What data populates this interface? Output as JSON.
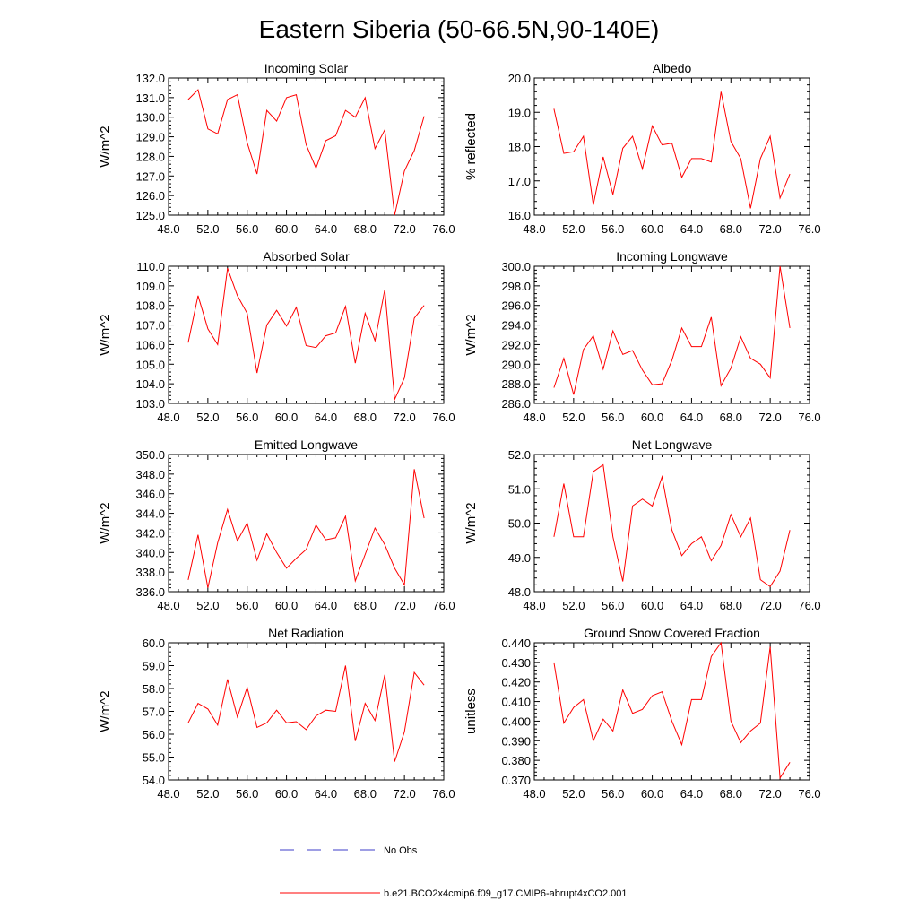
{
  "page": {
    "title": "Eastern Siberia (50-66.5N,90-140E)"
  },
  "legend": {
    "entries": [
      {
        "label": "No Obs",
        "color": "#3c3cc8",
        "dash": true
      },
      {
        "label": "b.e21.BCO2x4cmip6.f09_g17.CMIP6-abrupt4xCO2.001",
        "color": "#ff0000",
        "dash": false
      }
    ]
  },
  "chart_data": [
    {
      "type": "line",
      "title": "Incoming Solar",
      "ylabel": "W/m^2",
      "xlim": [
        48,
        76
      ],
      "ylim": [
        125,
        132
      ],
      "xticks": [
        "48.0",
        "52.0",
        "56.0",
        "60.0",
        "64.0",
        "68.0",
        "72.0",
        "76.0"
      ],
      "yticks": [
        "125.0",
        "126.0",
        "127.0",
        "128.0",
        "129.0",
        "130.0",
        "131.0",
        "132.0"
      ],
      "x": [
        50,
        51,
        52,
        53,
        54,
        55,
        56,
        57,
        58,
        59,
        60,
        61,
        62,
        63,
        64,
        65,
        66,
        67,
        68,
        69,
        70,
        71,
        72,
        73,
        74
      ],
      "series": [
        {
          "color": "#ff0000",
          "values": [
            130.9,
            131.4,
            129.4,
            129.15,
            130.9,
            131.15,
            128.7,
            127.1,
            130.35,
            129.8,
            131.0,
            131.15,
            128.6,
            127.4,
            128.8,
            129.05,
            130.35,
            130.0,
            131.0,
            128.4,
            129.35,
            125.0,
            127.25,
            128.3,
            130.05
          ]
        }
      ]
    },
    {
      "type": "line",
      "title": "Albedo",
      "ylabel": "% reflected",
      "xlim": [
        48,
        76
      ],
      "ylim": [
        16,
        20
      ],
      "xticks": [
        "48.0",
        "52.0",
        "56.0",
        "60.0",
        "64.0",
        "68.0",
        "72.0",
        "76.0"
      ],
      "yticks": [
        "16.0",
        "17.0",
        "18.0",
        "19.0",
        "20.0"
      ],
      "x": [
        50,
        51,
        52,
        53,
        54,
        55,
        56,
        57,
        58,
        59,
        60,
        61,
        62,
        63,
        64,
        65,
        66,
        67,
        68,
        69,
        70,
        71,
        72,
        73,
        74
      ],
      "series": [
        {
          "color": "#ff0000",
          "values": [
            19.1,
            17.8,
            17.85,
            18.3,
            16.3,
            17.7,
            16.6,
            17.95,
            18.3,
            17.35,
            18.6,
            18.05,
            18.1,
            17.1,
            17.65,
            17.65,
            17.55,
            19.6,
            18.15,
            17.65,
            16.2,
            17.65,
            18.3,
            16.5,
            17.2
          ]
        }
      ]
    },
    {
      "type": "line",
      "title": "Absorbed Solar",
      "ylabel": "W/m^2",
      "xlim": [
        48,
        76
      ],
      "ylim": [
        103,
        110
      ],
      "xticks": [
        "48.0",
        "52.0",
        "56.0",
        "60.0",
        "64.0",
        "68.0",
        "72.0",
        "76.0"
      ],
      "yticks": [
        "103.0",
        "104.0",
        "105.0",
        "106.0",
        "107.0",
        "108.0",
        "109.0",
        "110.0"
      ],
      "x": [
        50,
        51,
        52,
        53,
        54,
        55,
        56,
        57,
        58,
        59,
        60,
        61,
        62,
        63,
        64,
        65,
        66,
        67,
        68,
        69,
        70,
        71,
        72,
        73,
        74
      ],
      "series": [
        {
          "color": "#ff0000",
          "values": [
            106.1,
            108.5,
            106.8,
            106.0,
            109.9,
            108.5,
            107.6,
            104.55,
            107.0,
            107.75,
            106.95,
            107.9,
            105.95,
            105.85,
            106.45,
            106.6,
            107.95,
            105.05,
            107.6,
            106.2,
            108.8,
            103.2,
            104.3,
            107.35,
            108.0
          ]
        }
      ]
    },
    {
      "type": "line",
      "title": "Incoming Longwave",
      "ylabel": "W/m^2",
      "xlim": [
        48,
        76
      ],
      "ylim": [
        286,
        300
      ],
      "xticks": [
        "48.0",
        "52.0",
        "56.0",
        "60.0",
        "64.0",
        "68.0",
        "72.0",
        "76.0"
      ],
      "yticks": [
        "286.0",
        "288.0",
        "290.0",
        "292.0",
        "294.0",
        "296.0",
        "298.0",
        "300.0"
      ],
      "x": [
        50,
        51,
        52,
        53,
        54,
        55,
        56,
        57,
        58,
        59,
        60,
        61,
        62,
        63,
        64,
        65,
        66,
        67,
        68,
        69,
        70,
        71,
        72,
        73,
        74
      ],
      "series": [
        {
          "color": "#ff0000",
          "values": [
            287.6,
            290.6,
            286.9,
            291.5,
            292.9,
            289.5,
            293.4,
            291.0,
            291.4,
            289.4,
            287.9,
            288.0,
            290.4,
            293.7,
            291.8,
            291.8,
            294.8,
            287.8,
            289.6,
            292.8,
            290.6,
            290.0,
            288.6,
            300.0,
            293.7
          ]
        }
      ]
    },
    {
      "type": "line",
      "title": "Emitted Longwave",
      "ylabel": "W/m^2",
      "xlim": [
        48,
        76
      ],
      "ylim": [
        336,
        350
      ],
      "xticks": [
        "48.0",
        "52.0",
        "56.0",
        "60.0",
        "64.0",
        "68.0",
        "72.0",
        "76.0"
      ],
      "yticks": [
        "336.0",
        "338.0",
        "340.0",
        "342.0",
        "344.0",
        "346.0",
        "348.0",
        "350.0"
      ],
      "x": [
        50,
        51,
        52,
        53,
        54,
        55,
        56,
        57,
        58,
        59,
        60,
        61,
        62,
        63,
        64,
        65,
        66,
        67,
        68,
        69,
        70,
        71,
        72,
        73,
        74
      ],
      "series": [
        {
          "color": "#ff0000",
          "values": [
            337.2,
            341.8,
            336.4,
            341.0,
            344.4,
            341.2,
            343.0,
            339.2,
            341.9,
            340.0,
            338.4,
            339.4,
            340.3,
            342.8,
            341.3,
            341.5,
            343.7,
            337.1,
            339.8,
            342.5,
            340.8,
            338.4,
            336.7,
            348.5,
            343.5
          ]
        }
      ]
    },
    {
      "type": "line",
      "title": "Net Longwave",
      "ylabel": "W/m^2",
      "xlim": [
        48,
        76
      ],
      "ylim": [
        48,
        52
      ],
      "xticks": [
        "48.0",
        "52.0",
        "56.0",
        "60.0",
        "64.0",
        "68.0",
        "72.0",
        "76.0"
      ],
      "yticks": [
        "48.0",
        "49.0",
        "50.0",
        "51.0",
        "52.0"
      ],
      "x": [
        50,
        51,
        52,
        53,
        54,
        55,
        56,
        57,
        58,
        59,
        60,
        61,
        62,
        63,
        64,
        65,
        66,
        67,
        68,
        69,
        70,
        71,
        72,
        73,
        74
      ],
      "series": [
        {
          "color": "#ff0000",
          "values": [
            49.6,
            51.15,
            49.6,
            49.6,
            51.5,
            51.7,
            49.6,
            48.3,
            50.5,
            50.7,
            50.5,
            51.35,
            49.8,
            49.05,
            49.4,
            49.6,
            48.9,
            49.35,
            50.25,
            49.6,
            50.15,
            48.35,
            48.15,
            48.6,
            49.8
          ]
        }
      ]
    },
    {
      "type": "line",
      "title": "Net Radiation",
      "ylabel": "W/m^2",
      "xlim": [
        48,
        76
      ],
      "ylim": [
        54,
        60
      ],
      "xticks": [
        "48.0",
        "52.0",
        "56.0",
        "60.0",
        "64.0",
        "68.0",
        "72.0",
        "76.0"
      ],
      "yticks": [
        "54.0",
        "55.0",
        "56.0",
        "57.0",
        "58.0",
        "59.0",
        "60.0"
      ],
      "x": [
        50,
        51,
        52,
        53,
        54,
        55,
        56,
        57,
        58,
        59,
        60,
        61,
        62,
        63,
        64,
        65,
        66,
        67,
        68,
        69,
        70,
        71,
        72,
        73,
        74
      ],
      "series": [
        {
          "color": "#ff0000",
          "values": [
            56.5,
            57.35,
            57.1,
            56.4,
            58.4,
            56.75,
            58.05,
            56.3,
            56.5,
            57.05,
            56.5,
            56.55,
            56.2,
            56.8,
            57.05,
            57.0,
            59.0,
            55.7,
            57.35,
            56.6,
            58.6,
            54.8,
            56.1,
            58.7,
            58.15
          ]
        }
      ]
    },
    {
      "type": "line",
      "title": "Ground Snow Covered Fraction",
      "ylabel": "unitless",
      "xlim": [
        48,
        76
      ],
      "ylim": [
        0.37,
        0.44
      ],
      "xticks": [
        "48.0",
        "52.0",
        "56.0",
        "60.0",
        "64.0",
        "68.0",
        "72.0",
        "76.0"
      ],
      "yticks": [
        "0.370",
        "0.380",
        "0.390",
        "0.400",
        "0.410",
        "0.420",
        "0.430",
        "0.440"
      ],
      "x": [
        50,
        51,
        52,
        53,
        54,
        55,
        56,
        57,
        58,
        59,
        60,
        61,
        62,
        63,
        64,
        65,
        66,
        67,
        68,
        69,
        70,
        71,
        72,
        73,
        74
      ],
      "series": [
        {
          "color": "#ff0000",
          "values": [
            0.43,
            0.399,
            0.407,
            0.411,
            0.39,
            0.401,
            0.395,
            0.416,
            0.404,
            0.406,
            0.413,
            0.415,
            0.4,
            0.388,
            0.411,
            0.411,
            0.433,
            0.44,
            0.4,
            0.389,
            0.395,
            0.399,
            0.438,
            0.371,
            0.379
          ]
        }
      ]
    }
  ]
}
